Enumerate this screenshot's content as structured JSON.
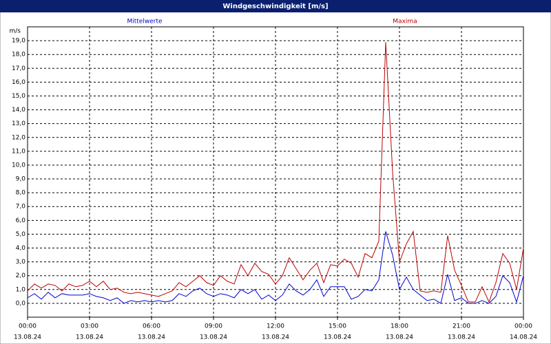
{
  "chart_data": {
    "type": "line",
    "title": "Windgeschwindigkeit [m/s]",
    "y_unit": "m/s",
    "x": [
      0,
      20,
      40,
      60,
      80,
      100,
      120,
      140,
      160,
      180,
      200,
      220,
      240,
      260,
      280,
      300,
      320,
      340,
      360,
      380,
      400,
      420,
      440,
      460,
      480,
      500,
      520,
      540,
      560,
      580,
      600,
      620,
      640,
      660,
      680,
      700,
      720,
      740,
      760,
      780,
      800,
      820,
      840,
      860,
      880,
      900,
      920,
      940,
      960,
      980,
      1000,
      1020,
      1040,
      1060,
      1080,
      1100,
      1120,
      1140,
      1160,
      1180,
      1200,
      1220,
      1240,
      1260,
      1280,
      1300,
      1320,
      1340,
      1360,
      1380,
      1400,
      1420,
      1440
    ],
    "series": [
      {
        "name": "Mittelwerte",
        "color": "#0000cc",
        "values": [
          0.4,
          0.7,
          0.3,
          0.8,
          0.4,
          0.7,
          0.6,
          0.6,
          0.6,
          0.7,
          0.5,
          0.4,
          0.2,
          0.4,
          0.0,
          0.2,
          0.1,
          0.2,
          0.1,
          0.2,
          0.1,
          0.2,
          0.7,
          0.5,
          0.9,
          1.1,
          0.7,
          0.5,
          0.7,
          0.6,
          0.4,
          1.0,
          0.7,
          1.0,
          0.3,
          0.6,
          0.2,
          0.6,
          1.4,
          0.9,
          0.6,
          1.0,
          1.7,
          0.5,
          1.2,
          1.2,
          1.2,
          0.3,
          0.5,
          1.0,
          0.9,
          1.7,
          5.2,
          3.5,
          1.0,
          1.9,
          1.0,
          0.6,
          0.2,
          0.3,
          0.0,
          2.1,
          0.2,
          0.4,
          0.0,
          0.0,
          0.2,
          0.0,
          0.5,
          2.0,
          1.5,
          0.1,
          2.0
        ]
      },
      {
        "name": "Maxima",
        "color": "#bb0000",
        "values": [
          0.9,
          1.4,
          1.1,
          1.4,
          1.3,
          0.9,
          1.4,
          1.2,
          1.3,
          1.6,
          1.2,
          1.6,
          1.0,
          1.1,
          0.8,
          0.7,
          0.8,
          0.7,
          0.6,
          0.5,
          0.7,
          0.9,
          1.5,
          1.2,
          1.6,
          2.0,
          1.5,
          1.3,
          2.0,
          1.6,
          1.4,
          2.8,
          2.0,
          2.9,
          2.3,
          2.1,
          1.4,
          2.0,
          3.3,
          2.5,
          1.7,
          2.4,
          2.9,
          1.5,
          2.8,
          2.7,
          3.2,
          2.9,
          1.9,
          3.6,
          3.3,
          4.5,
          18.9,
          9.5,
          3.0,
          4.3,
          5.2,
          0.9,
          0.8,
          0.9,
          0.8,
          4.9,
          2.4,
          1.3,
          0.1,
          0.1,
          1.2,
          0.1,
          1.5,
          3.6,
          2.9,
          1.0,
          4.0
        ]
      }
    ],
    "xlim": [
      0,
      1440
    ],
    "xticks": [
      {
        "value": 0,
        "label": "00:00",
        "date": "13.08.24"
      },
      {
        "value": 180,
        "label": "03:00",
        "date": "13.08.24"
      },
      {
        "value": 360,
        "label": "06:00",
        "date": "13.08.24"
      },
      {
        "value": 540,
        "label": "09:00",
        "date": "13.08.24"
      },
      {
        "value": 720,
        "label": "12:00",
        "date": "13.08.24"
      },
      {
        "value": 900,
        "label": "15:00",
        "date": "13.08.24"
      },
      {
        "value": 1080,
        "label": "18:00",
        "date": "13.08.24"
      },
      {
        "value": 1260,
        "label": "21:00",
        "date": "13.08.24"
      },
      {
        "value": 1440,
        "label": "00:00",
        "date": "14.08.24"
      }
    ],
    "ylim": [
      -1,
      20
    ],
    "yticks": [
      {
        "value": 0,
        "label": "0,0"
      },
      {
        "value": 1,
        "label": "1,0"
      },
      {
        "value": 2,
        "label": "2,0"
      },
      {
        "value": 3,
        "label": "3,0"
      },
      {
        "value": 4,
        "label": "4,0"
      },
      {
        "value": 5,
        "label": "5,0"
      },
      {
        "value": 6,
        "label": "6,0"
      },
      {
        "value": 7,
        "label": "7,0"
      },
      {
        "value": 8,
        "label": "8,0"
      },
      {
        "value": 9,
        "label": "9,0"
      },
      {
        "value": 10,
        "label": "10,0"
      },
      {
        "value": 11,
        "label": "11,0"
      },
      {
        "value": 12,
        "label": "12,0"
      },
      {
        "value": 13,
        "label": "13,0"
      },
      {
        "value": 14,
        "label": "14,0"
      },
      {
        "value": 15,
        "label": "15,0"
      },
      {
        "value": 16,
        "label": "16,0"
      },
      {
        "value": 17,
        "label": "17,0"
      },
      {
        "value": 18,
        "label": "18,0"
      },
      {
        "value": 19,
        "label": "19,0"
      }
    ],
    "grid": true
  }
}
